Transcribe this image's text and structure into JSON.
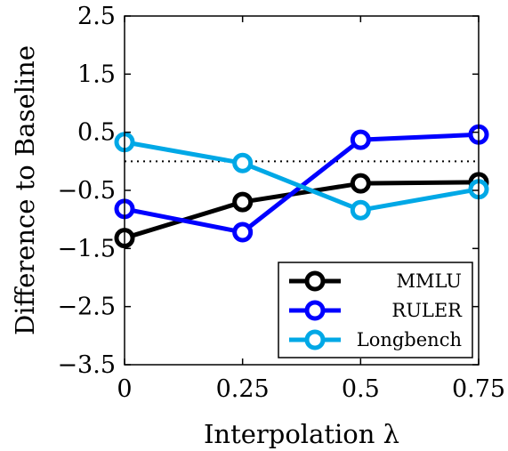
{
  "chart_data": {
    "type": "line",
    "xlabel": "Interpolation λ",
    "ylabel": "Difference to Baseline",
    "x": [
      0,
      0.25,
      0.5,
      0.75
    ],
    "xlim": [
      0,
      0.75
    ],
    "ylim": [
      -3.5,
      2.5
    ],
    "x_ticks": [
      "0",
      "0.25",
      "0.5",
      "0.75"
    ],
    "y_ticks": [
      "2.5",
      "1.5",
      "0.5",
      "−0.5",
      "−1.5",
      "−2.5",
      "−3.5"
    ],
    "y_tick_values": [
      2.5,
      1.5,
      0.5,
      -0.5,
      -1.5,
      -2.5,
      -3.5
    ],
    "baseline": 0,
    "grid": false,
    "legend_position": "bottom-right",
    "series": [
      {
        "name": "MMLU",
        "values": [
          -1.32,
          -0.7,
          -0.38,
          -0.36
        ],
        "color": "#000000"
      },
      {
        "name": "RULER",
        "values": [
          -0.82,
          -1.22,
          0.37,
          0.46
        ],
        "color": "#0000ff"
      },
      {
        "name": "Longbench",
        "values": [
          0.33,
          -0.03,
          -0.84,
          -0.48
        ],
        "color": "#00a8e6"
      }
    ]
  }
}
